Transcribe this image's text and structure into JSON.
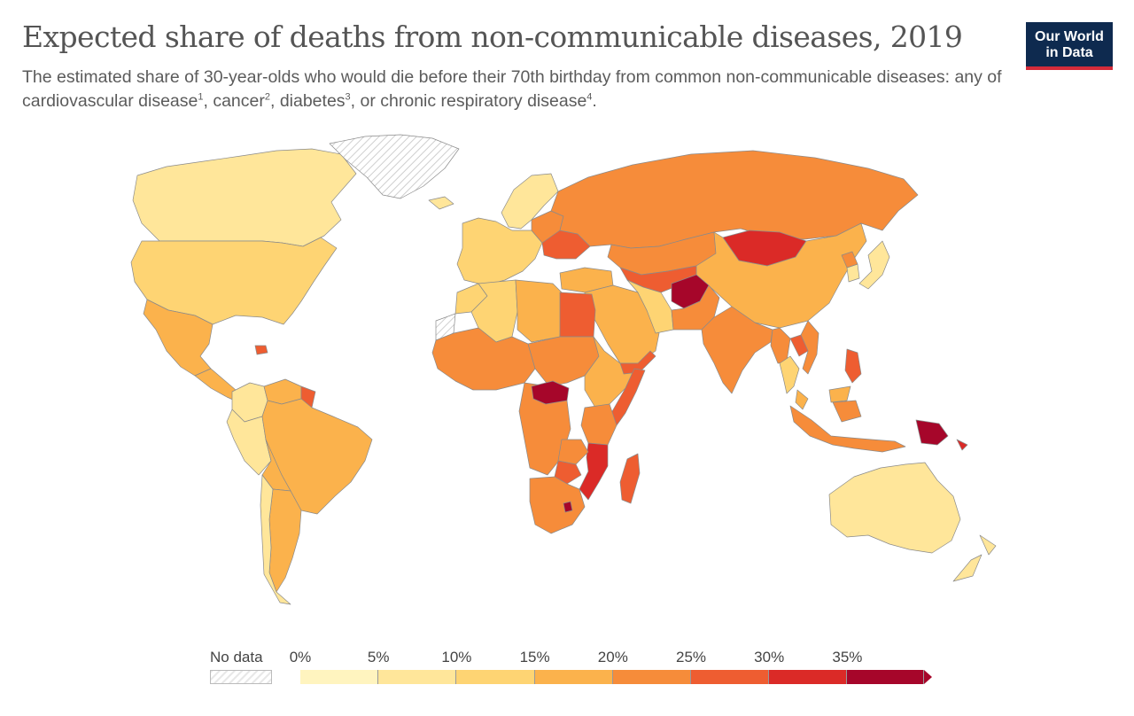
{
  "header": {
    "title": "Expected share of deaths from non-communicable diseases, 2019",
    "subtitle_parts": [
      "The estimated share of 30-year-olds who would die before their 70th birthday from common non-communicable diseases: any of cardiovascular disease",
      "1",
      ", cancer",
      "2",
      ", diabetes",
      "3",
      ", or chronic respiratory disease",
      "4",
      "."
    ]
  },
  "logo": {
    "line1": "Our World",
    "line2": "in Data",
    "bg": "#0e2a4f",
    "accent": "#d42b3a"
  },
  "legend": {
    "no_data_label": "No data",
    "ticks": [
      "0%",
      "5%",
      "10%",
      "15%",
      "20%",
      "25%",
      "30%",
      "35%"
    ],
    "colors": [
      "#fff4bf",
      "#ffe69a",
      "#fed473",
      "#fbb24c",
      "#f68c3a",
      "#ee5d31",
      "#db2a27",
      "#a6062a"
    ]
  },
  "chart_data": {
    "type": "choropleth",
    "unit": "%",
    "bins": [
      [
        0,
        5
      ],
      [
        5,
        10
      ],
      [
        10,
        15
      ],
      [
        15,
        20
      ],
      [
        20,
        25
      ],
      [
        25,
        30
      ],
      [
        30,
        35
      ],
      [
        35,
        40
      ]
    ],
    "regions": [
      {
        "region": "Canada",
        "value": 7
      },
      {
        "region": "United States",
        "value": 12
      },
      {
        "region": "Mexico",
        "value": 16
      },
      {
        "region": "Central America",
        "value": 17
      },
      {
        "region": "Haiti",
        "value": 28
      },
      {
        "region": "Colombia",
        "value": 9
      },
      {
        "region": "Venezuela",
        "value": 19
      },
      {
        "region": "Guyana",
        "value": 27
      },
      {
        "region": "Peru",
        "value": 8
      },
      {
        "region": "Brazil",
        "value": 18
      },
      {
        "region": "Bolivia",
        "value": 17
      },
      {
        "region": "Argentina",
        "value": 16
      },
      {
        "region": "Chile",
        "value": 9
      },
      {
        "region": "Greenland",
        "value": null
      },
      {
        "region": "Western Sahara",
        "value": null
      },
      {
        "region": "Iceland",
        "value": 7
      },
      {
        "region": "Western Europe",
        "value": 10
      },
      {
        "region": "Nordic countries",
        "value": 8
      },
      {
        "region": "Eastern Europe",
        "value": 20
      },
      {
        "region": "Ukraine",
        "value": 26
      },
      {
        "region": "Russia",
        "value": 23
      },
      {
        "region": "Kazakhstan",
        "value": 24
      },
      {
        "region": "Mongolia",
        "value": 33
      },
      {
        "region": "China",
        "value": 17
      },
      {
        "region": "Japan",
        "value": 8
      },
      {
        "region": "South Korea",
        "value": 7
      },
      {
        "region": "North Korea",
        "value": 24
      },
      {
        "region": "Central Asia",
        "value": 26
      },
      {
        "region": "Turkey",
        "value": 15
      },
      {
        "region": "Middle East",
        "value": 18
      },
      {
        "region": "Iran",
        "value": 14
      },
      {
        "region": "Afghanistan",
        "value": 37
      },
      {
        "region": "Pakistan",
        "value": 24
      },
      {
        "region": "India",
        "value": 22
      },
      {
        "region": "Myanmar",
        "value": 24
      },
      {
        "region": "Thailand",
        "value": 14
      },
      {
        "region": "Vietnam",
        "value": 21
      },
      {
        "region": "Laos",
        "value": 27
      },
      {
        "region": "Philippines",
        "value": 25
      },
      {
        "region": "Malaysia",
        "value": 17
      },
      {
        "region": "Indonesia",
        "value": 23
      },
      {
        "region": "Papua New Guinea",
        "value": 36
      },
      {
        "region": "Solomon Islands",
        "value": 30
      },
      {
        "region": "Australia",
        "value": 7
      },
      {
        "region": "New Zealand",
        "value": 8
      },
      {
        "region": "Morocco",
        "value": 13
      },
      {
        "region": "Algeria",
        "value": 14
      },
      {
        "region": "Libya",
        "value": 18
      },
      {
        "region": "Egypt",
        "value": 27
      },
      {
        "region": "West Africa",
        "value": 20
      },
      {
        "region": "Central Africa",
        "value": 20
      },
      {
        "region": "Central African Republic",
        "value": 36
      },
      {
        "region": "East Africa",
        "value": 18
      },
      {
        "region": "Yemen",
        "value": 28
      },
      {
        "region": "Somalia",
        "value": 28
      },
      {
        "region": "Tanzania",
        "value": 20
      },
      {
        "region": "Mozambique",
        "value": 30
      },
      {
        "region": "Zambia",
        "value": 22
      },
      {
        "region": "Zimbabwe",
        "value": 26
      },
      {
        "region": "Madagascar",
        "value": 25
      },
      {
        "region": "South Africa",
        "value": 20
      },
      {
        "region": "Lesotho",
        "value": 35
      }
    ]
  }
}
